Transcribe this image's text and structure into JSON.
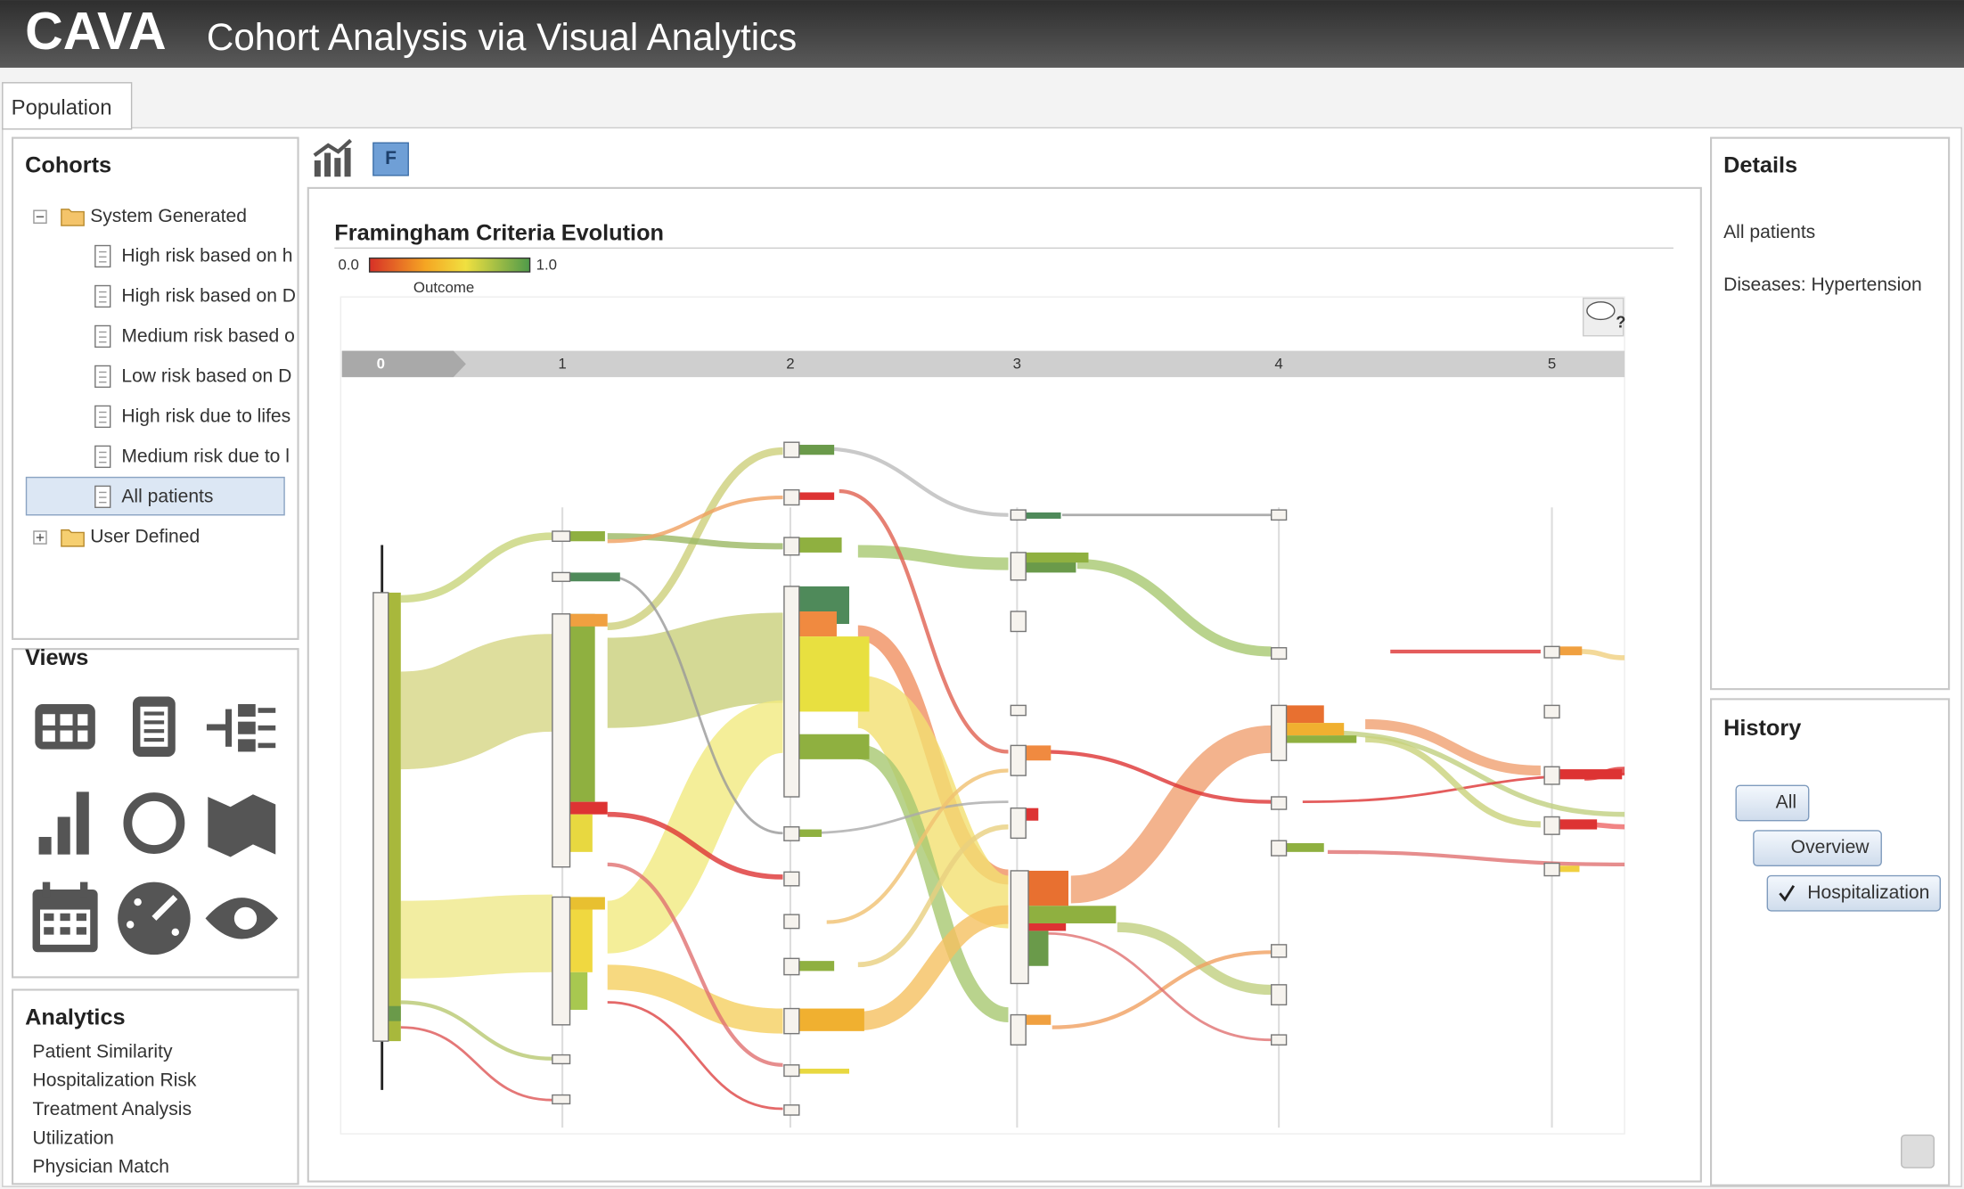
{
  "header": {
    "logo": "CAVA",
    "title": "Cohort Analysis via Visual Analytics"
  },
  "tabs": [
    "Population"
  ],
  "cohorts": {
    "title": "Cohorts",
    "groups": [
      {
        "label": "System Generated",
        "items": [
          "High risk based on h",
          "High risk based on D",
          "Medium risk based o",
          "Low risk based on D",
          "High risk due to lifes",
          "Medium risk due to l",
          "All patients"
        ]
      },
      {
        "label": "User Defined"
      }
    ]
  },
  "views": {
    "title": "Views"
  },
  "analytics": {
    "title": "Analytics",
    "items": [
      "Patient Similarity",
      "Hospitalization Risk",
      "Treatment Analysis",
      "Utilization",
      "Physician Match"
    ]
  },
  "toolbar": {
    "filter_button": "F"
  },
  "visualization": {
    "title": "Framingham Criteria Evolution",
    "legend": {
      "min": "0.0",
      "max": "1.0",
      "label": "Outcome"
    },
    "steps": [
      "0",
      "1",
      "2",
      "3",
      "4",
      "5"
    ]
  },
  "details": {
    "title": "Details",
    "lines": [
      "All patients",
      "Diseases: Hypertension"
    ]
  },
  "history": {
    "title": "History",
    "items": [
      "All",
      "Overview",
      "Hospitalization"
    ]
  }
}
